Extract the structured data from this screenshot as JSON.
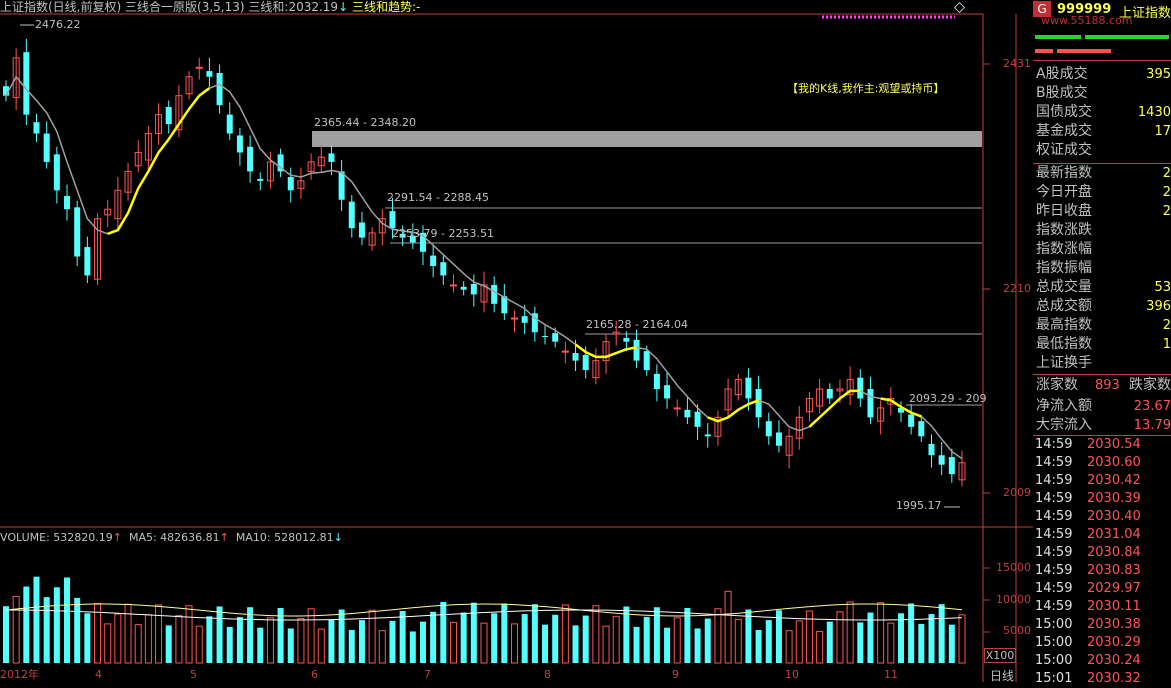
{
  "header": {
    "title": "上证指数(日线,前复权)",
    "indicator": "三线合一原版(3,5,13)",
    "value_label": "三线和:",
    "value": "2032.19",
    "value_arrow": "↓",
    "trend_label": "三线和趋势:",
    "trend_value": "-"
  },
  "annotation": "【我的K线,我作主:观望或持币】",
  "price_axis": {
    "ticks": [
      "2431",
      "2210",
      "2009"
    ]
  },
  "price_labels": {
    "high": "2476.22",
    "low": "1995.17",
    "r1": "2365.44 - 2348.20",
    "r2": "2291.54 - 2288.45",
    "r3": "2253.79 - 2253.51",
    "r4": "2165.28 - 2164.04",
    "r5": "2093.29 - 209"
  },
  "volume_header": {
    "volume": "VOLUME: 532820.19",
    "volume_arrow": "↑",
    "ma5": "MA5: 482636.81",
    "ma5_arrow": "↑",
    "ma10": "MA10: 528012.81",
    "ma10_arrow": "↓"
  },
  "volume_axis": {
    "ticks": [
      "15000",
      "10000",
      "5000"
    ],
    "unit": "X100"
  },
  "x_axis": {
    "labels": [
      "2012年",
      "4",
      "5",
      "6",
      "7",
      "8",
      "9",
      "10",
      "11"
    ],
    "period": "日线"
  },
  "panel": {
    "badge": "G",
    "code": "999999",
    "name": "上证指数",
    "watermark": "www.55188.com",
    "rows1": [
      {
        "label": "A股成交",
        "value": "395"
      },
      {
        "label": "B股成交",
        "value": ""
      },
      {
        "label": "国债成交",
        "value": "1430"
      },
      {
        "label": "基金成交",
        "value": "17"
      },
      {
        "label": "权证成交",
        "value": ""
      }
    ],
    "rows2": [
      {
        "label": "最新指数",
        "value": "2"
      },
      {
        "label": "今日开盘",
        "value": "2"
      },
      {
        "label": "昨日收盘",
        "value": "2"
      },
      {
        "label": "指数涨跌",
        "value": ""
      },
      {
        "label": "指数涨幅",
        "value": ""
      },
      {
        "label": "指数振幅",
        "value": ""
      },
      {
        "label": "总成交量",
        "value": "53"
      },
      {
        "label": "总成交额",
        "value": "396"
      },
      {
        "label": "最高指数",
        "value": "2"
      },
      {
        "label": "最低指数",
        "value": "1"
      },
      {
        "label": "上证换手",
        "value": ""
      }
    ],
    "advance_label": "涨家数",
    "advance_value": "893",
    "decline_label": "跌家数",
    "net_inflow_label": "净流入额",
    "net_inflow_value": "23.67",
    "block_inflow_label": "大宗流入",
    "block_inflow_value": "13.79",
    "ticks": [
      {
        "time": "14:59",
        "price": "2030.54"
      },
      {
        "time": "14:59",
        "price": "2030.60"
      },
      {
        "time": "14:59",
        "price": "2030.42"
      },
      {
        "time": "14:59",
        "price": "2030.39"
      },
      {
        "time": "14:59",
        "price": "2030.40"
      },
      {
        "time": "14:59",
        "price": "2031.04"
      },
      {
        "time": "14:59",
        "price": "2030.84"
      },
      {
        "time": "14:59",
        "price": "2030.83"
      },
      {
        "time": "14:59",
        "price": "2029.97"
      },
      {
        "time": "14:59",
        "price": "2030.11"
      },
      {
        "time": "15:00",
        "price": "2030.38"
      },
      {
        "time": "15:00",
        "price": "2030.29"
      },
      {
        "time": "15:00",
        "price": "2030.24"
      },
      {
        "time": "15:01",
        "price": "2030.32"
      }
    ]
  },
  "colors": {
    "up": "#ff5454",
    "down": "#54ffff",
    "ma": "#a0a0a0",
    "trend": "#ffff00",
    "axis": "#c04040"
  },
  "chart_data": {
    "type": "candlestick",
    "series_close": [
      2420,
      2460,
      2400,
      2380,
      2350,
      2320,
      2300,
      2250,
      2230,
      2290,
      2300,
      2320,
      2340,
      2360,
      2380,
      2400,
      2390,
      2420,
      2440,
      2450,
      2440,
      2410,
      2380,
      2360,
      2340,
      2330,
      2350,
      2340,
      2320,
      2330,
      2350,
      2355,
      2350,
      2310,
      2280,
      2270,
      2275,
      2290,
      2280,
      2270,
      2265,
      2255,
      2240,
      2230,
      2220,
      2215,
      2210,
      2220,
      2200,
      2190,
      2185,
      2180,
      2170,
      2165,
      2160,
      2150,
      2140,
      2130,
      2140,
      2160,
      2170,
      2160,
      2140,
      2130,
      2110,
      2100,
      2090,
      2080,
      2070,
      2060,
      2080,
      2110,
      2120,
      2100,
      2080,
      2060,
      2050,
      2060,
      2080,
      2100,
      2110,
      2100,
      2110,
      2120,
      2100,
      2080,
      2090,
      2100,
      2085,
      2070,
      2060,
      2040,
      2030,
      2020,
      2032
    ],
    "ylim": [
      1980,
      2500
    ],
    "volume_ticks": [
      15000,
      10000,
      5000
    ],
    "volume_ylim": [
      0,
      19500
    ]
  }
}
